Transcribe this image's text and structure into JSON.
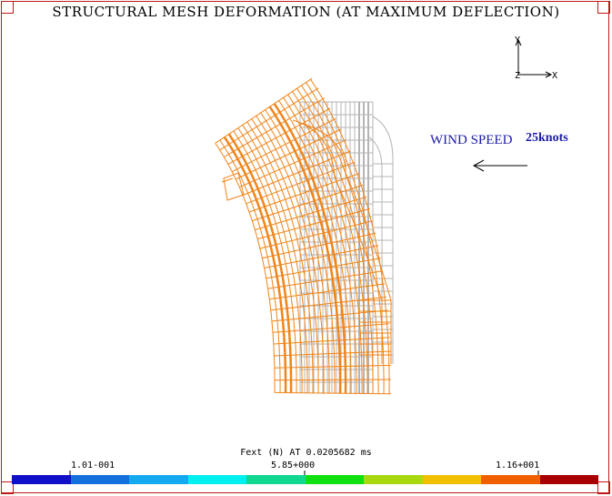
{
  "title": "STRUCTURAL MESH DEFORMATION (AT MAXIMUM DEFLECTION)",
  "axes": {
    "y_label": "Y",
    "x_label": "X",
    "z_label": "Z"
  },
  "wind": {
    "label": "WIND SPEED",
    "speed": "25knots",
    "arrow_direction": "left"
  },
  "legend": {
    "caption": "Fext (N) AT 0.0205682 ms",
    "min_label": "1.01-001",
    "mid_label": "5.85+000",
    "max_label": "1.16+001",
    "colors": [
      "#1010c8",
      "#1470dc",
      "#14aaf0",
      "#00f0f0",
      "#10d890",
      "#10e010",
      "#a8d810",
      "#f0c000",
      "#f06000",
      "#a80000"
    ]
  },
  "mesh": {
    "deformed_color": "#f08418",
    "undeformed_color": "#b4b4b4"
  }
}
